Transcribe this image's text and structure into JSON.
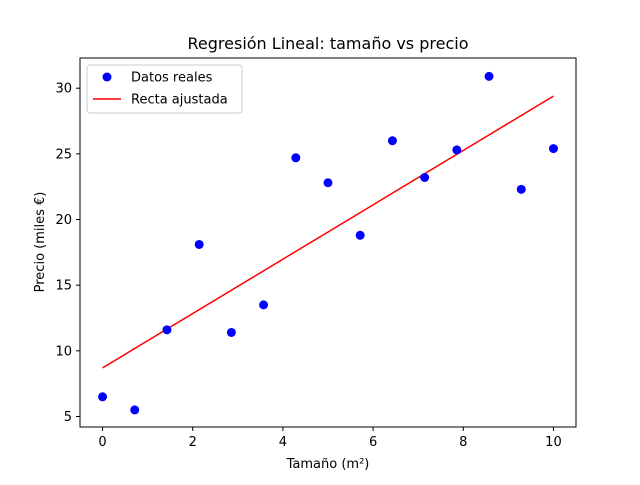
{
  "chart_data": {
    "type": "scatter",
    "title": "Regresión Lineal: tamaño vs precio",
    "xlabel": "Tamaño (m²)",
    "ylabel": "Precio (miles €)",
    "xlim": [
      -0.5,
      10.5
    ],
    "ylim": [
      4.2,
      32.3
    ],
    "xticks": [
      0,
      2,
      4,
      6,
      8,
      10
    ],
    "yticks": [
      5,
      10,
      15,
      20,
      25,
      30
    ],
    "grid": false,
    "legend_position": "upper-left",
    "series": [
      {
        "name": "Datos reales",
        "type": "scatter",
        "color": "#0000ff",
        "x": [
          0,
          0.714,
          1.429,
          2.143,
          2.857,
          3.571,
          4.286,
          5.0,
          5.714,
          6.429,
          7.143,
          7.857,
          8.571,
          9.286,
          10.0
        ],
        "y": [
          6.5,
          5.5,
          11.6,
          18.1,
          11.4,
          13.5,
          24.7,
          22.8,
          18.8,
          26.0,
          23.2,
          25.3,
          30.9,
          22.3,
          25.4
        ]
      },
      {
        "name": "Recta ajustada",
        "type": "line",
        "color": "#ff0000",
        "x": [
          0,
          10
        ],
        "y": [
          8.7,
          29.4
        ]
      }
    ]
  }
}
